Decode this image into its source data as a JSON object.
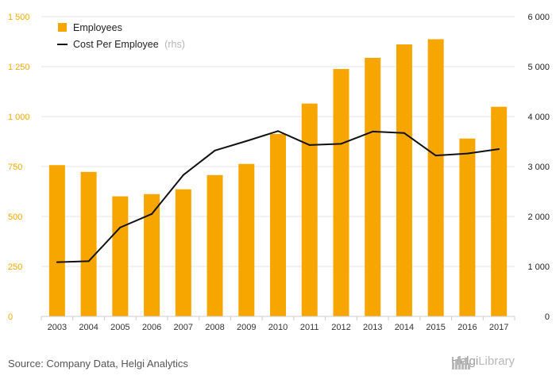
{
  "chart_data": {
    "type": "bar",
    "categories": [
      "2003",
      "2004",
      "2005",
      "2006",
      "2007",
      "2008",
      "2009",
      "2010",
      "2011",
      "2012",
      "2013",
      "2014",
      "2015",
      "2016",
      "2017"
    ],
    "series": [
      {
        "name": "Employees",
        "type": "bar",
        "axis": "left",
        "values": [
          757,
          723,
          601,
          612,
          636,
          707,
          763,
          913,
          1065,
          1238,
          1294,
          1361,
          1387,
          890,
          1049
        ]
      },
      {
        "name": "Cost Per Employee",
        "name_suffix": "(rhs)",
        "type": "line",
        "axis": "right",
        "values": [
          1085,
          1105,
          1780,
          2050,
          2830,
          3320,
          3510,
          3710,
          3430,
          3455,
          3700,
          3670,
          3220,
          3260,
          3350
        ]
      }
    ],
    "y_left": {
      "min": 0,
      "max": 1500,
      "ticks": [
        0,
        250,
        500,
        750,
        1000,
        1250,
        1500
      ],
      "tick_labels": [
        "0",
        "250",
        "500",
        "750",
        "1 000",
        "1 250",
        "1 500"
      ]
    },
    "y_right": {
      "min": 0,
      "max": 6000,
      "ticks": [
        0,
        1000,
        2000,
        3000,
        4000,
        5000,
        6000
      ],
      "tick_labels": [
        "0",
        "1 000",
        "2 000",
        "3 000",
        "4 000",
        "5 000",
        "6 000"
      ]
    },
    "grid": true,
    "legend_position": "top-left",
    "colors": {
      "bar": "#f7a600",
      "line": "#111111",
      "grid": "#e4e4e4",
      "left_ticks": "#f2a900"
    }
  },
  "footer": {
    "source": "Source: Company Data, Helgi Analytics",
    "brand_bold": "Helgi",
    "brand_light": "Library",
    "brand_icon": "city-skyline-icon"
  }
}
